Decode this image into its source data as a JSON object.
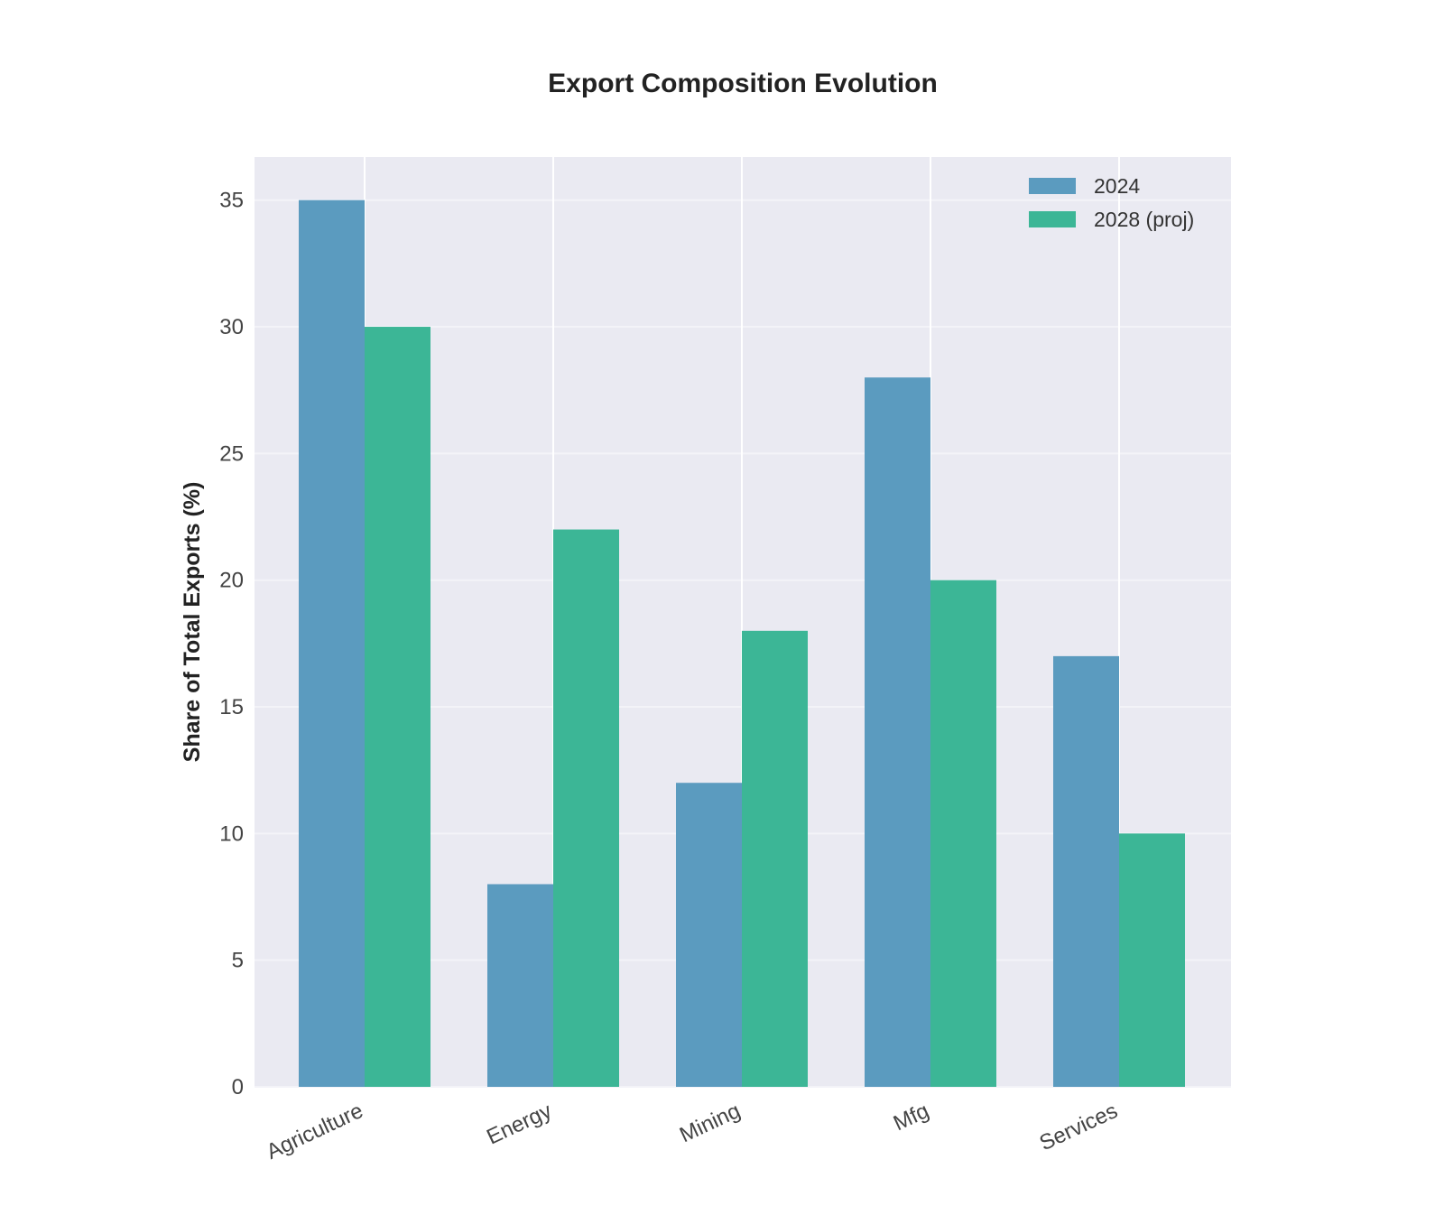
{
  "chart_data": {
    "type": "bar",
    "title": "Export Composition Evolution",
    "xlabel": "",
    "ylabel": "Share of Total Exports (%)",
    "categories": [
      "Agriculture",
      "Energy",
      "Mining",
      "Mfg",
      "Services"
    ],
    "series": [
      {
        "name": "2024",
        "values": [
          35,
          8,
          12,
          28,
          17
        ],
        "color": "#5b9bbf"
      },
      {
        "name": "2028 (proj)",
        "values": [
          30,
          22,
          18,
          20,
          10
        ],
        "color": "#3cb696"
      }
    ],
    "ylim": [
      0,
      36.7
    ],
    "yticks": [
      0,
      5,
      10,
      15,
      20,
      25,
      30,
      35
    ],
    "grid": true,
    "legend_position": "top-right",
    "plot_background": "#eaeaf2"
  }
}
